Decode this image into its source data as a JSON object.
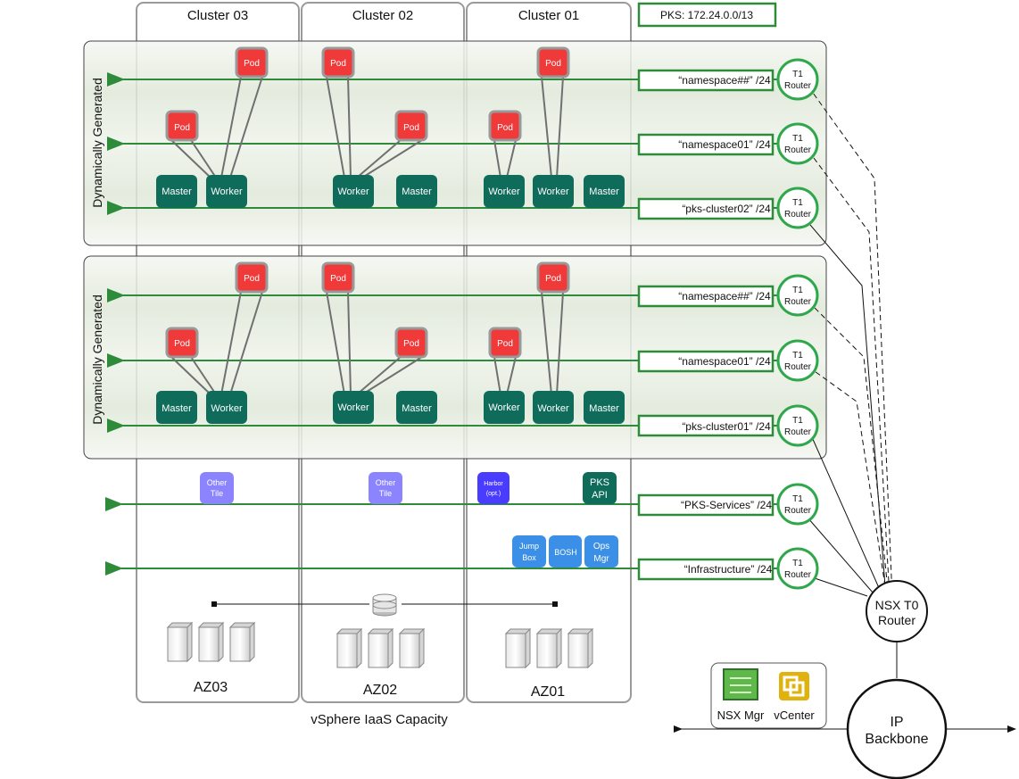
{
  "pks_cidr": "PKS: 172.24.0.0/13",
  "clusters": [
    {
      "title": "Cluster 03",
      "az": "AZ03"
    },
    {
      "title": "Cluster 02",
      "az": "AZ02"
    },
    {
      "title": "Cluster 01",
      "az": "AZ01"
    }
  ],
  "iaas_label": "vSphere IaaS Capacity",
  "groups": [
    {
      "label": "Dynamically Generated",
      "networks": [
        "“namespace##” /24",
        "“namespace01” /24",
        "“pks-cluster02” /24"
      ]
    },
    {
      "label": "Dynamically Generated",
      "networks": [
        "“namespace##” /24",
        "“namespace01” /24",
        "“pks-cluster01” /24"
      ]
    }
  ],
  "node_labels": {
    "master": "Master",
    "worker": "Worker",
    "pod": "Pod"
  },
  "services_network": "“PKS-Services” /24",
  "infrastructure_network": "“Infrastructure” /24",
  "t1_router": [
    "T1",
    "Router"
  ],
  "t0_router": [
    "NSX T0",
    "Router"
  ],
  "backbone": [
    "IP",
    "Backbone"
  ],
  "tiles": {
    "other_tile": [
      "Other",
      "Tile"
    ],
    "harbor": [
      "Harbor",
      "(opt.)"
    ],
    "pks_api": [
      "PKS",
      "API"
    ],
    "jump_box": [
      "Jump",
      "Box"
    ],
    "bosh": [
      "BOSH"
    ],
    "ops_mgr": [
      "Ops",
      "Mgr"
    ]
  },
  "management": {
    "nsx_mgr": "NSX Mgr",
    "vcenter": "vCenter"
  },
  "colors": {
    "network_green": "#2e8b3a",
    "router_green": "#2ea84a",
    "node_teal": "#0f6b5a",
    "pod_red": "#f03a3a",
    "tile_purple": "#8c84ff",
    "harbor_blue": "#4a3cff",
    "infra_blue": "#3b8fe6",
    "panel_fill": "#dbe6d3"
  }
}
